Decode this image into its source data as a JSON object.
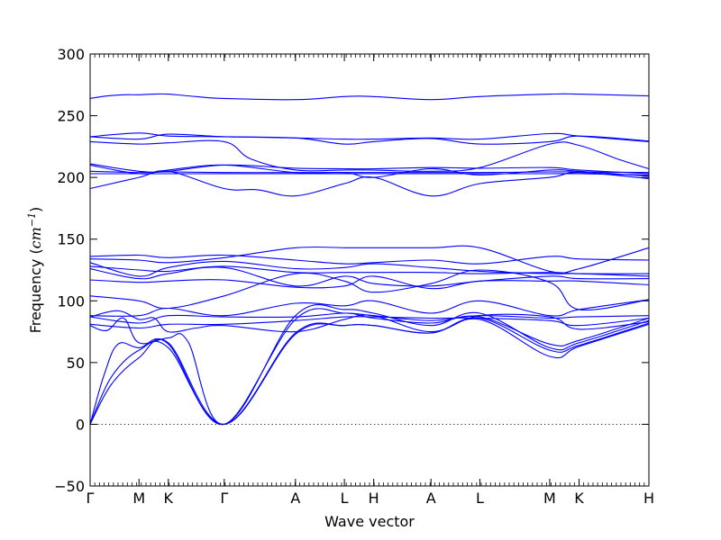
{
  "chart_data": {
    "type": "line",
    "title": "",
    "xlabel": "Wave vector",
    "ylabel": "Frequency (cm⁻¹)",
    "ylabel_main": "Frequency (",
    "ylabel_unit": "cm",
    "ylabel_exp": "−1",
    "ylabel_close": ")",
    "ylim": [
      -50,
      300
    ],
    "yticks": [
      -50,
      0,
      50,
      100,
      150,
      200,
      250,
      300
    ],
    "xlim": [
      0,
      4.0
    ],
    "grid": false,
    "line_color": "#0000ff",
    "zero_line": {
      "y": 0,
      "style": "dotted"
    },
    "k_points": [
      {
        "label": "Γ",
        "x": 0.0
      },
      {
        "label": "M",
        "x": 0.35
      },
      {
        "label": "K",
        "x": 0.56
      },
      {
        "label": "Γ",
        "x": 0.96
      },
      {
        "label": "A",
        "x": 1.47
      },
      {
        "label": "L",
        "x": 1.82
      },
      {
        "label": "H",
        "x": 2.03
      },
      {
        "label": "A",
        "x": 2.44
      },
      {
        "label": "L",
        "x": 2.79
      },
      {
        "label": "M",
        "x": 3.29
      },
      {
        "label": "K",
        "x": 3.5
      },
      {
        "label": "H",
        "x": 4.0
      }
    ],
    "series": [
      {
        "x": [
          0.0,
          0.12,
          0.24,
          0.35,
          0.46,
          0.56,
          0.76,
          0.96,
          1.47,
          1.82,
          2.03,
          2.44,
          2.79,
          3.29,
          3.5,
          4.0
        ],
        "y": [
          264,
          266,
          267,
          267,
          267.5,
          267.5,
          265.5,
          264,
          263,
          265.5,
          265.5,
          263,
          265.5,
          267.5,
          267.5,
          266
        ]
      },
      {
        "x": [
          0.0,
          0.35,
          0.56,
          0.96,
          1.47,
          1.82,
          2.03,
          2.44,
          2.79,
          3.29,
          3.5,
          4.0
        ],
        "y": [
          233,
          236,
          233.5,
          233,
          232,
          231,
          231,
          232,
          231,
          235.5,
          233.5,
          229
        ]
      },
      {
        "x": [
          0.0,
          0.35,
          0.56,
          0.96,
          1.47,
          1.82,
          2.03,
          2.44,
          2.79,
          3.29,
          3.5,
          4.0
        ],
        "y": [
          233,
          231,
          235,
          233,
          232,
          227,
          229,
          231.5,
          227,
          229,
          233.5,
          229.5
        ]
      },
      {
        "x": [
          0.0,
          0.35,
          0.56,
          0.96,
          1.15,
          1.47,
          1.82,
          2.03,
          2.44,
          2.79,
          3.29,
          3.5,
          3.8,
          4.0
        ],
        "y": [
          229,
          227,
          228,
          229,
          215,
          206,
          206,
          206,
          205,
          208,
          227,
          226,
          214,
          207
        ]
      },
      {
        "x": [
          0.0,
          0.35,
          0.56,
          0.96,
          1.47,
          1.82,
          2.03,
          2.44,
          2.79,
          3.29,
          3.5,
          4.0
        ],
        "y": [
          211,
          205,
          205,
          210,
          207.5,
          207,
          207,
          208,
          207.5,
          208,
          206,
          203
        ]
      },
      {
        "x": [
          0.0,
          0.35,
          0.56,
          0.96,
          1.47,
          1.82,
          2.03,
          2.44,
          2.79,
          3.29,
          3.5,
          4.0
        ],
        "y": [
          210,
          203,
          206,
          210,
          204,
          204,
          200,
          207,
          202,
          206,
          205,
          201
        ]
      },
      {
        "x": [
          0.0,
          0.35,
          0.56,
          0.96,
          1.47,
          1.82,
          2.03,
          2.44,
          2.79,
          3.29,
          3.5,
          4.0
        ],
        "y": [
          205,
          204,
          204.5,
          204,
          204,
          204,
          204,
          204,
          204,
          204.5,
          204.5,
          204
        ]
      },
      {
        "x": [
          0.0,
          0.35,
          0.56,
          0.96,
          1.47,
          1.82,
          2.03,
          2.44,
          2.79,
          3.29,
          3.5,
          4.0
        ],
        "y": [
          203,
          203,
          203,
          203,
          203,
          203,
          203,
          203,
          203,
          203,
          203,
          202
        ]
      },
      {
        "x": [
          0.0,
          0.35,
          0.56,
          0.96,
          1.2,
          1.47,
          1.82,
          2.03,
          2.44,
          2.79,
          3.29,
          3.5,
          4.0
        ],
        "y": [
          191,
          200,
          205,
          191,
          190,
          185,
          195,
          200,
          185,
          195,
          200,
          204,
          199
        ]
      },
      {
        "x": [
          0.0,
          0.35,
          0.56,
          0.96,
          1.47,
          1.82,
          2.03,
          2.44,
          2.79,
          3.29,
          3.5,
          4.0
        ],
        "y": [
          136,
          137,
          135,
          137,
          133,
          130,
          131,
          133,
          130,
          136,
          134,
          133
        ]
      },
      {
        "x": [
          0.0,
          0.35,
          0.56,
          0.96,
          1.47,
          1.82,
          2.03,
          2.44,
          2.79,
          3.29,
          3.5,
          4.0
        ],
        "y": [
          134,
          133,
          131,
          135,
          143,
          143,
          143,
          143,
          143,
          124,
          126,
          143
        ]
      },
      {
        "x": [
          0.0,
          0.35,
          0.56,
          0.96,
          1.47,
          1.82,
          2.03,
          2.44,
          2.79,
          3.29,
          3.5,
          4.0
        ],
        "y": [
          131,
          120,
          127,
          132,
          126,
          127,
          130,
          127,
          124,
          122,
          122,
          120
        ]
      },
      {
        "x": [
          0.0,
          0.35,
          0.56,
          0.96,
          1.47,
          1.82,
          2.03,
          2.44,
          2.79,
          3.29,
          3.5,
          4.0
        ],
        "y": [
          128,
          125,
          124,
          128,
          123,
          123,
          123,
          123,
          122,
          123,
          122,
          122
        ]
      },
      {
        "x": [
          0.0,
          0.35,
          0.56,
          0.96,
          1.47,
          1.82,
          2.03,
          2.44,
          2.79,
          3.29,
          3.5,
          4.0
        ],
        "y": [
          126,
          118,
          122,
          127,
          112,
          120,
          114,
          112,
          116,
          120,
          118,
          118
        ]
      },
      {
        "x": [
          0.0,
          0.35,
          0.56,
          0.96,
          1.47,
          1.82,
          2.03,
          2.44,
          2.79,
          3.29,
          3.5,
          4.0
        ],
        "y": [
          117,
          115,
          116,
          117,
          111,
          112,
          120,
          110,
          116,
          116,
          116,
          113
        ]
      },
      {
        "x": [
          0.0,
          0.35,
          0.56,
          0.96,
          1.47,
          1.82,
          2.03,
          2.44,
          2.79,
          3.29,
          3.5,
          4.0
        ],
        "y": [
          104,
          100,
          94,
          104,
          122,
          116,
          107,
          114,
          125,
          115,
          93,
          101
        ]
      },
      {
        "x": [
          0.0,
          0.35,
          0.56,
          0.96,
          1.47,
          1.82,
          2.03,
          2.44,
          2.79,
          3.29,
          3.5,
          4.0
        ],
        "y": [
          88,
          88,
          94,
          88,
          98,
          96,
          100,
          90,
          100,
          88,
          93,
          101
        ]
      },
      {
        "x": [
          0.0,
          0.35,
          0.56,
          0.96,
          1.47,
          1.82,
          2.03,
          2.44,
          2.79,
          3.29,
          3.5,
          4.0
        ],
        "y": [
          87,
          82,
          88,
          87,
          87,
          90,
          88,
          84,
          88,
          86,
          87,
          88
        ]
      },
      {
        "x": [
          0.0,
          0.35,
          0.56,
          0.96,
          1.47,
          1.82,
          2.03,
          2.44,
          2.79,
          3.29,
          3.5,
          4.0
        ],
        "y": [
          81,
          78,
          81,
          81,
          84,
          87,
          87,
          86,
          86,
          84,
          80,
          86
        ]
      },
      {
        "x": [
          0.0,
          0.2,
          0.35,
          0.46,
          0.56,
          0.76,
          0.96,
          1.47,
          1.82,
          2.03,
          2.44,
          2.79,
          3.29,
          3.5,
          4.0
        ],
        "y": [
          87,
          92,
          85,
          86,
          75,
          78,
          80,
          75,
          85,
          88,
          75,
          88,
          87,
          77,
          83
        ]
      },
      {
        "x": [
          0.0,
          0.12,
          0.24,
          0.35,
          0.56,
          0.7,
          0.96,
          1.47,
          1.82,
          2.03,
          2.44,
          2.79,
          3.29,
          3.5,
          4.0
        ],
        "y": [
          80,
          76,
          86,
          66,
          70,
          67,
          0,
          85,
          90,
          86,
          82,
          87,
          65,
          68,
          86
        ]
      },
      {
        "x": [
          0.0,
          0.1,
          0.2,
          0.35,
          0.56,
          0.96,
          1.47,
          1.82,
          2.03,
          2.44,
          2.79,
          3.29,
          3.5,
          4.0
        ],
        "y": [
          0,
          40,
          65,
          62,
          65,
          0,
          88,
          93,
          90,
          80,
          90,
          62,
          66,
          84
        ]
      },
      {
        "x": [
          0.0,
          0.15,
          0.35,
          0.56,
          0.96,
          1.47,
          1.82,
          2.03,
          2.44,
          2.79,
          3.29,
          3.5,
          4.0
        ],
        "y": [
          0,
          38,
          60,
          62,
          0,
          74,
          80,
          80,
          74,
          86,
          60,
          64,
          82
        ]
      },
      {
        "x": [
          0.0,
          0.15,
          0.35,
          0.56,
          0.96,
          1.47,
          1.82,
          2.03,
          2.44,
          2.79,
          3.29,
          3.5,
          4.0
        ],
        "y": [
          0,
          32,
          54,
          66,
          0,
          73,
          80,
          80,
          74,
          85,
          55,
          63,
          81
        ]
      }
    ]
  }
}
